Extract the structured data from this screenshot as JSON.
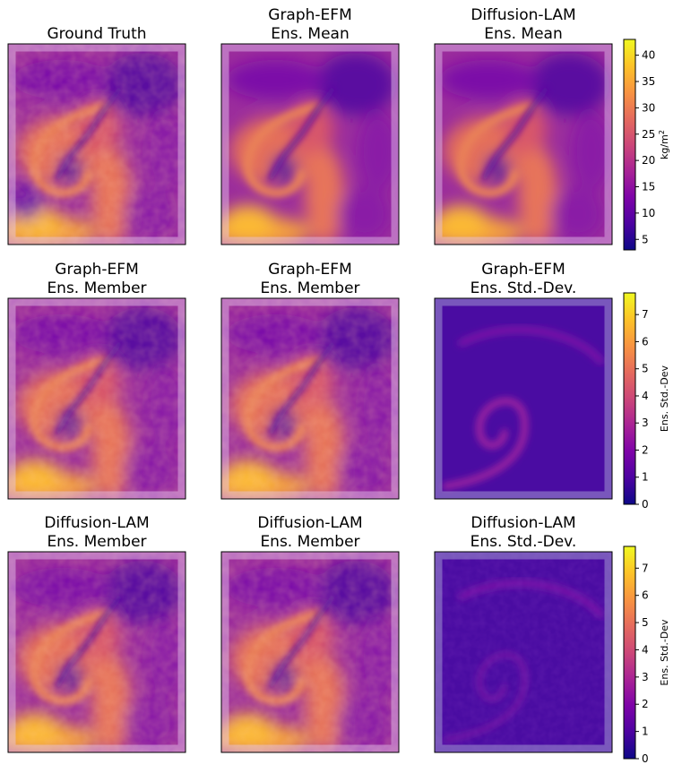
{
  "chart_data": {
    "type": "heatmap",
    "layout": "3x3 grid of map panels with colorbars",
    "colormap": "plasma",
    "panels": [
      {
        "row": 0,
        "col": 0,
        "title_lines": [
          "Ground Truth"
        ],
        "kind": "tcw",
        "variant": "truth"
      },
      {
        "row": 0,
        "col": 1,
        "title_lines": [
          "Graph-EFM",
          "Ens. Mean"
        ],
        "kind": "tcw",
        "variant": "mean"
      },
      {
        "row": 0,
        "col": 2,
        "title_lines": [
          "Diffusion-LAM",
          "Ens. Mean"
        ],
        "kind": "tcw",
        "variant": "mean2"
      },
      {
        "row": 1,
        "col": 0,
        "title_lines": [
          "Graph-EFM",
          "Ens. Member"
        ],
        "kind": "tcw",
        "variant": "member"
      },
      {
        "row": 1,
        "col": 1,
        "title_lines": [
          "Graph-EFM",
          "Ens. Member"
        ],
        "kind": "tcw",
        "variant": "member2"
      },
      {
        "row": 1,
        "col": 2,
        "title_lines": [
          "Graph-EFM",
          "Ens. Std.-Dev."
        ],
        "kind": "std",
        "variant": "efm"
      },
      {
        "row": 2,
        "col": 0,
        "title_lines": [
          "Diffusion-LAM",
          "Ens. Member"
        ],
        "kind": "tcw",
        "variant": "member3"
      },
      {
        "row": 2,
        "col": 1,
        "title_lines": [
          "Diffusion-LAM",
          "Ens. Member"
        ],
        "kind": "tcw",
        "variant": "member4"
      },
      {
        "row": 2,
        "col": 2,
        "title_lines": [
          "Diffusion-LAM",
          "Ens. Std.-Dev."
        ],
        "kind": "std",
        "variant": "diff"
      }
    ],
    "colorbars": [
      {
        "row": 0,
        "label": "kg/m",
        "label_superscript": "2",
        "range": [
          3,
          43
        ],
        "ticks": [
          5,
          10,
          15,
          20,
          25,
          30,
          35,
          40
        ]
      },
      {
        "row": 1,
        "label": "Ens. Std.-Dev",
        "label_superscript": "",
        "range": [
          0,
          7.8
        ],
        "ticks": [
          0,
          1,
          2,
          3,
          4,
          5,
          6,
          7
        ]
      },
      {
        "row": 2,
        "label": "Ens. Std.-Dev",
        "label_superscript": "",
        "range": [
          0,
          7.8
        ],
        "ticks": [
          0,
          1,
          2,
          3,
          4,
          5,
          6,
          7
        ]
      }
    ]
  }
}
